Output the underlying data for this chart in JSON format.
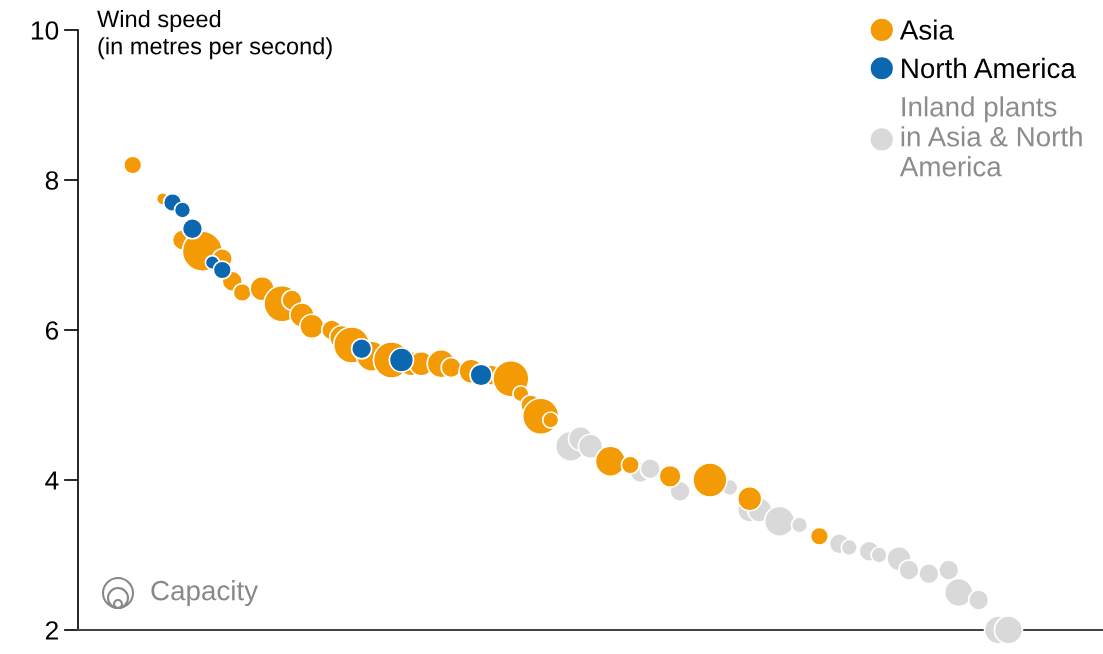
{
  "chart_data": {
    "type": "bubble",
    "ylabel": "Wind speed\n(in metres per second)",
    "ylim": [
      2,
      10
    ],
    "yticks": [
      2,
      4,
      6,
      8,
      10
    ],
    "tick_labels": "y",
    "grid": false,
    "legend": "top right",
    "marker": "circle",
    "categories": [
      null,
      null,
      null,
      null,
      null,
      null,
      null,
      null,
      null,
      null,
      null,
      null,
      null,
      null,
      null,
      null,
      null,
      null,
      null,
      null,
      null,
      null,
      null,
      null,
      null,
      null,
      null,
      null,
      null,
      null,
      null,
      null,
      null,
      null,
      null,
      null,
      null,
      null,
      null,
      null,
      null,
      null,
      null,
      null,
      null,
      null,
      null,
      null,
      null,
      null,
      null,
      null,
      null,
      null,
      null,
      null,
      null,
      null,
      null,
      null,
      null,
      null,
      null,
      null,
      null,
      null,
      null,
      null,
      null,
      null,
      null,
      null,
      null,
      null,
      null,
      null,
      null,
      null,
      null,
      null,
      null,
      null,
      null,
      null,
      null,
      null,
      null,
      null,
      null,
      null,
      null,
      null,
      null,
      null,
      null,
      null,
      null,
      null,
      null,
      null,
      null,
      null,
      null
    ],
    "annotations": [
      "Capacity"
    ],
    "series": [
      {
        "name": "Inland plants in Asia & North America",
        "color": "#d9d9d9",
        "values": [
          null,
          null,
          null,
          null,
          null,
          null,
          null,
          null,
          null,
          null,
          null,
          null,
          null,
          null,
          null,
          null,
          null,
          null,
          null,
          null,
          null,
          null,
          null,
          null,
          null,
          null,
          null,
          null,
          null,
          null,
          null,
          null,
          null,
          null,
          null,
          null,
          null,
          null,
          null,
          null,
          null,
          null,
          null,
          null,
          null,
          null,
          null,
          null,
          null,
          4.45,
          4.55,
          4.45,
          null,
          null,
          null,
          null,
          4.1,
          4.15,
          null,
          null,
          3.85,
          null,
          null,
          null,
          null,
          3.9,
          null,
          3.6,
          3.6,
          null,
          3.45,
          null,
          3.4,
          null,
          null,
          null,
          3.15,
          3.1,
          null,
          3.05,
          3.0,
          null,
          2.95,
          2.8,
          null,
          2.75,
          null,
          2.8,
          2.5,
          null,
          2.4,
          null,
          2.0,
          2.0,
          null,
          null,
          null,
          null,
          null,
          null,
          null,
          null,
          null
        ],
        "sizes": [
          null,
          null,
          null,
          null,
          null,
          null,
          null,
          null,
          null,
          null,
          null,
          null,
          null,
          null,
          null,
          null,
          null,
          null,
          null,
          null,
          null,
          null,
          null,
          null,
          null,
          null,
          null,
          null,
          null,
          null,
          null,
          null,
          null,
          null,
          null,
          null,
          null,
          null,
          null,
          null,
          null,
          null,
          null,
          null,
          null,
          null,
          null,
          null,
          null,
          0.56,
          0.36,
          0.36,
          null,
          null,
          null,
          null,
          0.25,
          0.25,
          null,
          null,
          0.25,
          null,
          null,
          null,
          null,
          0.16,
          null,
          0.36,
          0.36,
          null,
          0.56,
          null,
          0.16,
          null,
          null,
          null,
          0.25,
          0.16,
          null,
          0.25,
          0.16,
          null,
          0.36,
          0.25,
          null,
          0.25,
          null,
          0.25,
          0.49,
          null,
          0.25,
          null,
          0.49,
          0.49,
          null,
          null,
          null,
          null,
          null,
          null,
          null,
          null,
          null
        ]
      },
      {
        "name": "Asia",
        "color": "#f39a05",
        "values": [
          null,
          null,
          null,
          null,
          null,
          8.2,
          null,
          null,
          7.75,
          null,
          7.2,
          null,
          7.05,
          null,
          6.95,
          6.65,
          6.5,
          null,
          6.55,
          null,
          6.35,
          6.4,
          6.2,
          6.05,
          null,
          6.0,
          5.9,
          5.8,
          null,
          5.65,
          null,
          5.6,
          null,
          5.55,
          5.55,
          null,
          5.55,
          5.5,
          null,
          5.45,
          null,
          5.4,
          null,
          5.35,
          5.15,
          5.0,
          4.85,
          4.8,
          null,
          null,
          null,
          null,
          null,
          4.25,
          null,
          4.2,
          null,
          null,
          null,
          4.05,
          null,
          null,
          null,
          4.0,
          null,
          null,
          null,
          3.75,
          null,
          null,
          null,
          null,
          null,
          null,
          3.25,
          null,
          null,
          null,
          null,
          null,
          null,
          null,
          null,
          null,
          null,
          null,
          null,
          null,
          null,
          null,
          null,
          null,
          null,
          null,
          null,
          null,
          null,
          null,
          null,
          null,
          null,
          null,
          null
        ],
        "sizes": [
          null,
          null,
          null,
          null,
          null,
          0.2,
          null,
          null,
          0.09,
          null,
          0.25,
          null,
          1,
          null,
          0.25,
          0.25,
          0.2,
          null,
          0.36,
          null,
          0.81,
          0.25,
          0.36,
          0.36,
          null,
          0.25,
          0.36,
          0.81,
          null,
          0.56,
          null,
          0.81,
          null,
          0.36,
          0.36,
          null,
          0.49,
          0.25,
          null,
          0.36,
          null,
          0.25,
          null,
          0.81,
          0.16,
          0.25,
          0.81,
          0.16,
          null,
          null,
          null,
          null,
          null,
          0.56,
          null,
          0.2,
          null,
          null,
          null,
          0.3,
          null,
          null,
          null,
          0.72,
          null,
          null,
          null,
          0.36,
          null,
          null,
          null,
          null,
          null,
          null,
          0.2,
          null,
          null,
          null,
          null,
          null,
          null,
          null,
          null,
          null,
          null,
          null,
          null,
          null,
          null,
          null,
          null,
          null,
          null,
          null,
          null,
          null,
          null,
          null,
          null,
          null,
          null,
          null,
          null
        ]
      },
      {
        "name": "North America",
        "color": "#0a67b0",
        "values": [
          null,
          null,
          null,
          null,
          null,
          null,
          null,
          null,
          null,
          7.7,
          7.6,
          7.35,
          null,
          6.9,
          6.8,
          null,
          null,
          null,
          null,
          null,
          null,
          null,
          null,
          null,
          null,
          null,
          null,
          null,
          5.75,
          null,
          null,
          null,
          5.6,
          null,
          null,
          null,
          null,
          null,
          null,
          null,
          5.4,
          null,
          null,
          null,
          null,
          null,
          null,
          null,
          null,
          null,
          null,
          null,
          null,
          null,
          null,
          null,
          null,
          null,
          null,
          null,
          null,
          null,
          null,
          null,
          null,
          null,
          null,
          null,
          null,
          null,
          null,
          null,
          null,
          null,
          null,
          null,
          null,
          null,
          null,
          null,
          null,
          null,
          null,
          null,
          null,
          null,
          null,
          null,
          null,
          null,
          null,
          null,
          null,
          null,
          null,
          null,
          null,
          null,
          null,
          null,
          null,
          null,
          null
        ],
        "sizes": [
          null,
          null,
          null,
          null,
          null,
          null,
          null,
          null,
          null,
          0.2,
          0.16,
          0.25,
          null,
          0.12,
          0.2,
          null,
          null,
          null,
          null,
          null,
          null,
          null,
          null,
          null,
          null,
          null,
          null,
          null,
          0.25,
          null,
          null,
          null,
          0.36,
          null,
          null,
          null,
          null,
          null,
          null,
          null,
          0.3,
          null,
          null,
          null,
          null,
          null,
          null,
          null,
          null,
          null,
          null,
          null,
          null,
          null,
          null,
          null,
          null,
          null,
          null,
          null,
          null,
          null,
          null,
          null,
          null,
          null,
          null,
          null,
          null,
          null,
          null,
          null,
          null,
          null,
          null,
          null,
          null,
          null,
          null,
          null,
          null,
          null,
          null,
          null,
          null,
          null,
          null,
          null,
          null,
          null,
          null,
          null,
          null,
          null,
          null,
          null,
          null,
          null,
          null,
          null,
          null,
          null,
          null
        ]
      }
    ]
  }
}
